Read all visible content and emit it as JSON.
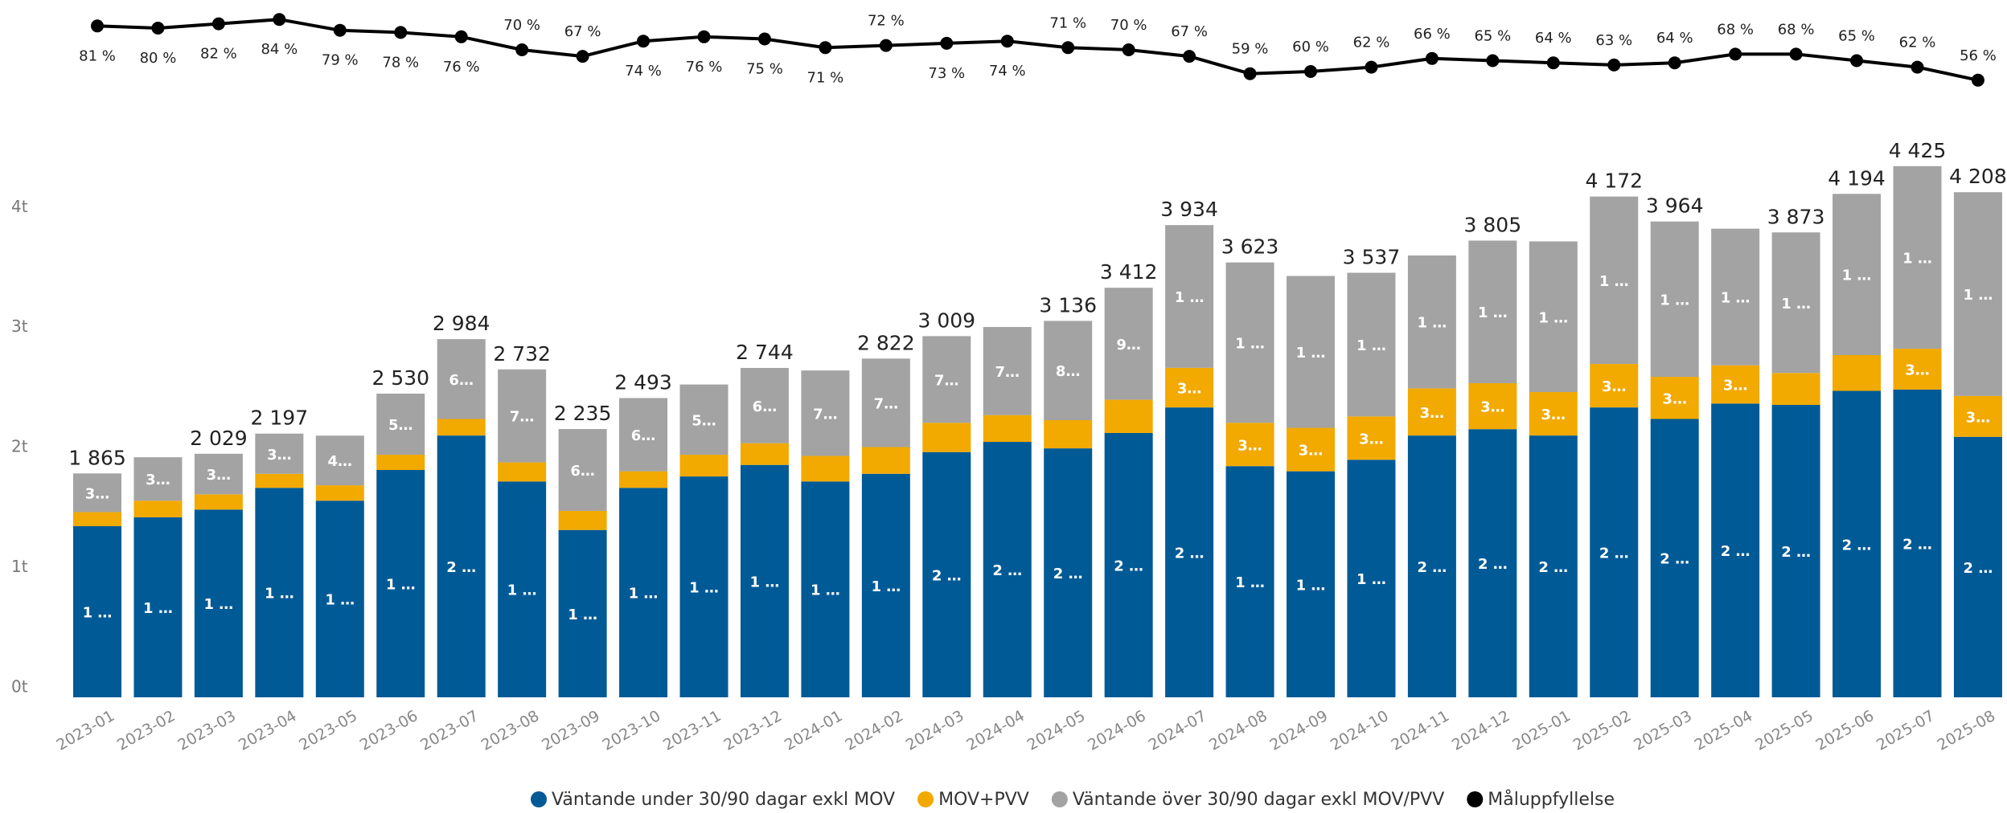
{
  "chart_data": {
    "type": "bar",
    "stacked": true,
    "categories": [
      "2023-01",
      "2023-02",
      "2023-03",
      "2023-04",
      "2023-05",
      "2023-06",
      "2023-07",
      "2023-08",
      "2023-09",
      "2023-10",
      "2023-11",
      "2023-12",
      "2024-01",
      "2024-02",
      "2024-03",
      "2024-04",
      "2024-05",
      "2024-06",
      "2024-07",
      "2024-08",
      "2024-09",
      "2024-10",
      "2024-11",
      "2024-12",
      "2025-01",
      "2025-02",
      "2025-03",
      "2025-04",
      "2025-05",
      "2025-06",
      "2025-07",
      "2025-08"
    ],
    "ylim": [
      0,
      4350
    ],
    "yticks": [
      {
        "value": 0,
        "label": "0t"
      },
      {
        "value": 1000,
        "label": "1t"
      },
      {
        "value": 2000,
        "label": "2t"
      },
      {
        "value": 3000,
        "label": "3t"
      },
      {
        "value": 4000,
        "label": "4t"
      }
    ],
    "y2lim": [
      40,
      90
    ],
    "grid": false,
    "legend": "bottom",
    "series": [
      {
        "name": "Väntande under 30/90 dagar exkl MOV",
        "color": "#005a96",
        "values": [
          1426,
          1500,
          1564,
          1745,
          1638,
          1894,
          2181,
          1798,
          1394,
          1745,
          1840,
          1936,
          1798,
          1862,
          2043,
          2128,
          2074,
          2202,
          2415,
          1926,
          1883,
          1979,
          2181,
          2234,
          2181,
          2415,
          2319,
          2447,
          2436,
          2553,
          2564,
          2170
        ],
        "value_labels": [
          "1 …",
          "1 …",
          "1 …",
          "1 …",
          "1 …",
          "1 …",
          "2 …",
          "1 …",
          "1 …",
          "1 …",
          "1 …",
          "1 …",
          "1 …",
          "1 …",
          "2 …",
          "2 …",
          "2 …",
          "2 …",
          "2 …",
          "1 …",
          "1 …",
          "1 …",
          "2 …",
          "2 …",
          "2 …",
          "2 …",
          "2 …",
          "2 …",
          "2 …",
          "2 …",
          "2 …",
          "2 …"
        ]
      },
      {
        "name": "MOV+PVV",
        "color": "#f2a900",
        "values": [
          117,
          138,
          127,
          117,
          128,
          127,
          138,
          159,
          159,
          138,
          181,
          181,
          213,
          223,
          244,
          223,
          235,
          277,
          330,
          361,
          362,
          361,
          393,
          383,
          362,
          362,
          351,
          319,
          266,
          298,
          340,
          341
        ],
        "value_labels": [
          null,
          null,
          null,
          null,
          null,
          null,
          null,
          null,
          null,
          null,
          null,
          null,
          null,
          null,
          null,
          null,
          null,
          null,
          "3…",
          "3…",
          "3…",
          "3…",
          "3…",
          "3…",
          "3…",
          "3…",
          "3…",
          "3…",
          null,
          null,
          "3…",
          "3…"
        ]
      },
      {
        "name": "Väntande över 30/90 dagar exkl MOV/PVV",
        "color": "#a3a3a3",
        "values": [
          322,
          362,
          338,
          335,
          414,
          509,
          665,
          775,
          682,
          610,
          585,
          627,
          712,
          737,
          722,
          734,
          827,
          933,
          1189,
          1336,
          1265,
          1197,
          1107,
          1188,
          1255,
          1395,
          1294,
          1138,
          1171,
          1343,
          1521,
          1697
        ],
        "value_labels": [
          "3…",
          "3…",
          "3…",
          "3…",
          "4…",
          "5…",
          "6…",
          "7…",
          "6…",
          "6…",
          "5…",
          "6…",
          "7…",
          "7…",
          "7…",
          "7…",
          "8…",
          "9…",
          "1 …",
          "1 …",
          "1 …",
          "1 …",
          "1 …",
          "1 …",
          "1 …",
          "1 …",
          "1 …",
          "1 …",
          "1 …",
          "1 …",
          "1 …",
          "1 …"
        ]
      },
      {
        "name": "Måluppfyllelse",
        "color": "#000000",
        "type": "line",
        "axis": "y2",
        "values": [
          81,
          80,
          82,
          84,
          79,
          78,
          76,
          70,
          67,
          74,
          76,
          75,
          71,
          72,
          73,
          74,
          71,
          70,
          67,
          59,
          60,
          62,
          66,
          65,
          64,
          63,
          64,
          68,
          68,
          65,
          62,
          56
        ],
        "value_labels": [
          "81 %",
          "80 %",
          "82 %",
          "84 %",
          "79 %",
          "78 %",
          "76 %",
          "70 %",
          "67 %",
          "74 %",
          "76 %",
          "75 %",
          "71 %",
          "72 %",
          "73 %",
          "74 %",
          "71 %",
          "70 %",
          "67 %",
          "59 %",
          "60 %",
          "62 %",
          "66 %",
          "65 %",
          "64 %",
          "63 %",
          "64 %",
          "68 %",
          "68 %",
          "65 %",
          "62 %",
          "56 %"
        ]
      }
    ],
    "totals": [
      1865,
      null,
      2029,
      2197,
      null,
      2530,
      2984,
      2732,
      2235,
      2493,
      null,
      2744,
      null,
      2822,
      3009,
      null,
      3136,
      3412,
      3934,
      3623,
      null,
      3537,
      null,
      3805,
      null,
      4172,
      3964,
      null,
      3873,
      4194,
      4425,
      4208
    ],
    "total_labels": [
      "1 865",
      null,
      "2 029",
      "2 197",
      null,
      "2 530",
      "2 984",
      "2 732",
      "2 235",
      "2 493",
      null,
      "2 744",
      null,
      "2 822",
      "3 009",
      null,
      "3 136",
      "3 412",
      "3 934",
      "3 623",
      null,
      "3 537",
      null,
      "3 805",
      null,
      "4 172",
      "3 964",
      null,
      "3 873",
      "4 194",
      "4 425",
      "4 208"
    ]
  }
}
